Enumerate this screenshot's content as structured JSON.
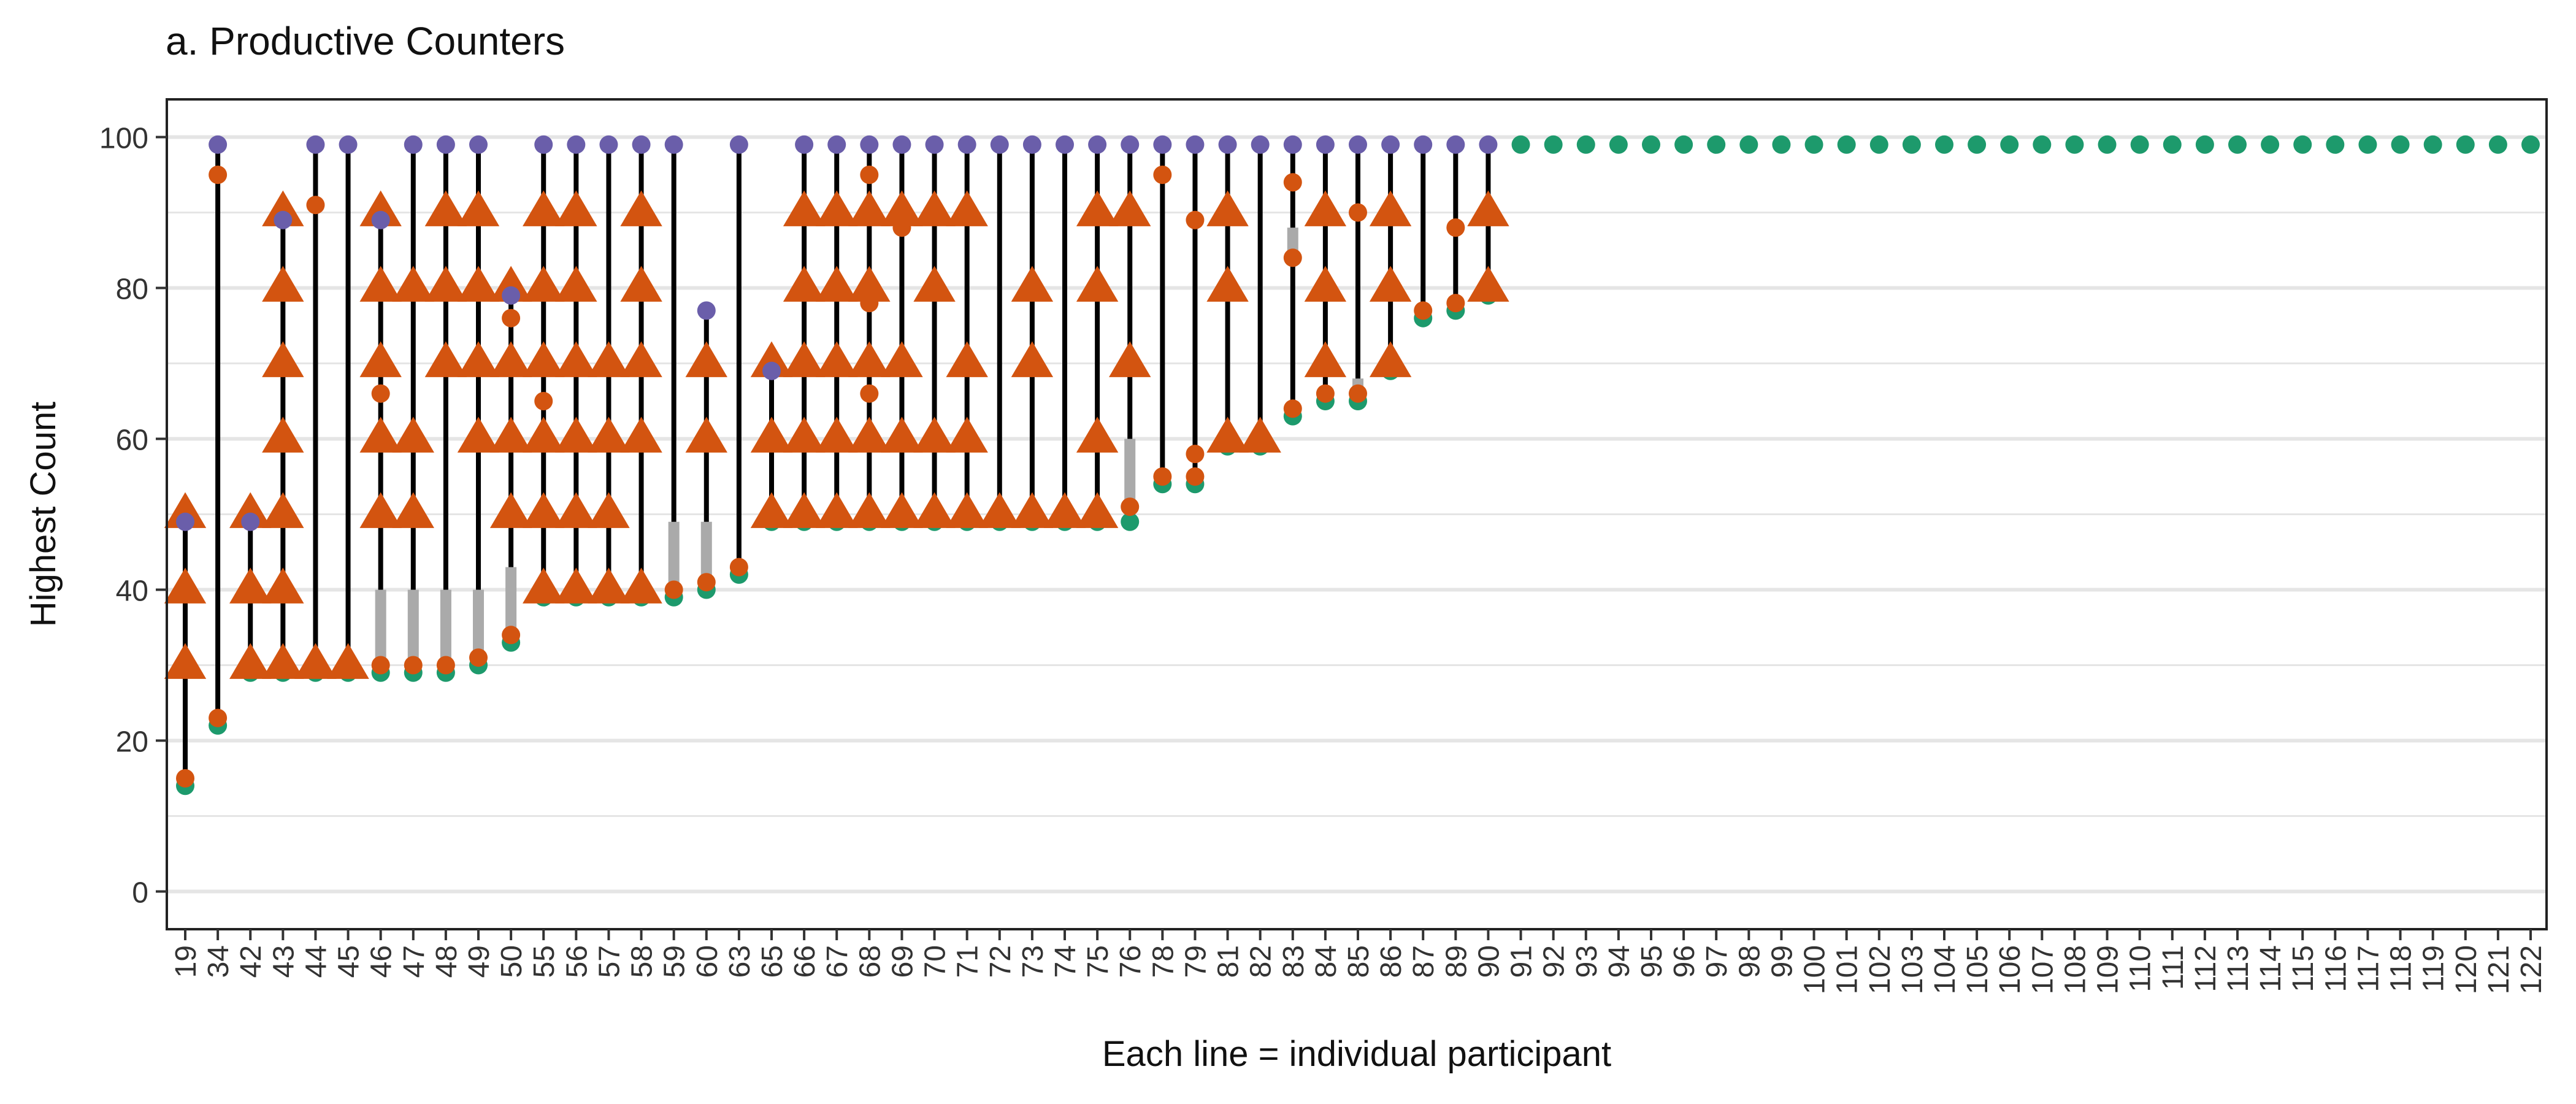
{
  "chart_data": {
    "type": "scatter",
    "title": "a. Productive Counters",
    "xlabel": "Each line = individual participant",
    "ylabel": "Highest Count",
    "ylim": [
      -5,
      105
    ],
    "y_ticks": [
      0,
      20,
      40,
      60,
      80,
      100
    ],
    "grid": true,
    "legend": "none",
    "colors": {
      "purple": "#6a5eaa",
      "orange": "#d35410",
      "green": "#1d9a6c",
      "black_line": "#000000",
      "gray_gap": "#aaaaaa",
      "grid": "#e5e5e5"
    },
    "participants": [
      {
        "label": "19",
        "green": 14,
        "purple": 49,
        "orange_dots": [
          15
        ],
        "triangles": [
          30,
          40,
          50
        ]
      },
      {
        "label": "34",
        "green": 22,
        "purple": 99,
        "orange_dots": [
          23,
          95
        ],
        "triangles": []
      },
      {
        "label": "42",
        "green": 29,
        "purple": 49,
        "orange_dots": [],
        "triangles": [
          30,
          40,
          50
        ]
      },
      {
        "label": "43",
        "green": 29,
        "purple": 89,
        "orange_dots": [],
        "triangles": [
          30,
          40,
          50,
          60,
          70,
          80,
          90
        ]
      },
      {
        "label": "44",
        "green": 29,
        "purple": 99,
        "orange_dots": [
          91
        ],
        "triangles": [
          30
        ]
      },
      {
        "label": "45",
        "green": 29,
        "purple": 99,
        "orange_dots": [],
        "triangles": [
          30
        ]
      },
      {
        "label": "46",
        "green": 29,
        "purple": 89,
        "orange_dots": [
          30,
          66
        ],
        "triangles": [
          50,
          60,
          70,
          80,
          90
        ],
        "gap": [
          30,
          40
        ]
      },
      {
        "label": "47",
        "green": 29,
        "purple": 99,
        "orange_dots": [
          30
        ],
        "triangles": [
          50,
          60,
          80
        ],
        "gap": [
          30,
          40
        ]
      },
      {
        "label": "48",
        "green": 29,
        "purple": 99,
        "orange_dots": [
          30
        ],
        "triangles": [
          70,
          80,
          90
        ],
        "gap": [
          30,
          40
        ]
      },
      {
        "label": "49",
        "green": 30,
        "purple": 99,
        "orange_dots": [
          31
        ],
        "triangles": [
          60,
          70,
          80,
          90
        ],
        "gap": [
          31,
          40
        ]
      },
      {
        "label": "50",
        "green": 33,
        "purple": 79,
        "orange_dots": [
          34,
          76
        ],
        "triangles": [
          50,
          60,
          70,
          80
        ],
        "gap": [
          34,
          43
        ]
      },
      {
        "label": "55",
        "green": 39,
        "purple": 99,
        "orange_dots": [
          65
        ],
        "triangles": [
          40,
          50,
          60,
          70,
          80,
          90
        ]
      },
      {
        "label": "56",
        "green": 39,
        "purple": 99,
        "orange_dots": [],
        "triangles": [
          40,
          50,
          60,
          70,
          80,
          90
        ]
      },
      {
        "label": "57",
        "green": 39,
        "purple": 99,
        "orange_dots": [],
        "triangles": [
          40,
          50,
          60,
          70
        ]
      },
      {
        "label": "58",
        "green": 39,
        "purple": 99,
        "orange_dots": [],
        "triangles": [
          40,
          60,
          70,
          80,
          90
        ]
      },
      {
        "label": "59",
        "green": 39,
        "purple": 99,
        "orange_dots": [
          40
        ],
        "triangles": [],
        "gap": [
          40,
          49
        ]
      },
      {
        "label": "60",
        "green": 40,
        "purple": 77,
        "orange_dots": [
          41
        ],
        "triangles": [
          60,
          70
        ],
        "gap": [
          41,
          49
        ]
      },
      {
        "label": "63",
        "green": 42,
        "purple": 99,
        "orange_dots": [
          43
        ],
        "triangles": []
      },
      {
        "label": "65",
        "green": 49,
        "purple": 69,
        "orange_dots": [],
        "triangles": [
          50,
          60,
          70
        ]
      },
      {
        "label": "66",
        "green": 49,
        "purple": 99,
        "orange_dots": [],
        "triangles": [
          50,
          60,
          70,
          80,
          90
        ]
      },
      {
        "label": "67",
        "green": 49,
        "purple": 99,
        "orange_dots": [],
        "triangles": [
          50,
          60,
          70,
          80,
          90
        ]
      },
      {
        "label": "68",
        "green": 49,
        "purple": 99,
        "orange_dots": [
          66,
          78,
          95
        ],
        "triangles": [
          50,
          60,
          70,
          80,
          90
        ]
      },
      {
        "label": "69",
        "green": 49,
        "purple": 99,
        "orange_dots": [
          88
        ],
        "triangles": [
          50,
          60,
          70,
          90
        ]
      },
      {
        "label": "70",
        "green": 49,
        "purple": 99,
        "orange_dots": [],
        "triangles": [
          50,
          60,
          80,
          90
        ]
      },
      {
        "label": "71",
        "green": 49,
        "purple": 99,
        "orange_dots": [],
        "triangles": [
          50,
          60,
          70,
          90
        ]
      },
      {
        "label": "72",
        "green": 49,
        "purple": 99,
        "orange_dots": [],
        "triangles": [
          50
        ]
      },
      {
        "label": "73",
        "green": 49,
        "purple": 99,
        "orange_dots": [],
        "triangles": [
          50,
          70,
          80
        ]
      },
      {
        "label": "74",
        "green": 49,
        "purple": 99,
        "orange_dots": [],
        "triangles": [
          50
        ]
      },
      {
        "label": "75",
        "green": 49,
        "purple": 99,
        "orange_dots": [],
        "triangles": [
          50,
          60,
          80,
          90
        ]
      },
      {
        "label": "76",
        "green": 49,
        "purple": 99,
        "orange_dots": [
          51
        ],
        "triangles": [
          70,
          90
        ],
        "gap": [
          51,
          60
        ]
      },
      {
        "label": "78",
        "green": 54,
        "purple": 99,
        "orange_dots": [
          55,
          95
        ],
        "triangles": []
      },
      {
        "label": "79",
        "green": 54,
        "purple": 99,
        "orange_dots": [
          55,
          58,
          89
        ],
        "triangles": []
      },
      {
        "label": "81",
        "green": 59,
        "purple": 99,
        "orange_dots": [],
        "triangles": [
          60,
          80,
          90
        ]
      },
      {
        "label": "82",
        "green": 59,
        "purple": 99,
        "orange_dots": [],
        "triangles": [
          60
        ]
      },
      {
        "label": "83",
        "green": 63,
        "purple": 99,
        "orange_dots": [
          64,
          84,
          94
        ],
        "triangles": [],
        "gap": [
          84,
          88
        ]
      },
      {
        "label": "84",
        "green": 65,
        "purple": 99,
        "orange_dots": [
          66
        ],
        "triangles": [
          70,
          80,
          90
        ]
      },
      {
        "label": "85",
        "green": 65,
        "purple": 99,
        "orange_dots": [
          66,
          90
        ],
        "triangles": [],
        "gap": [
          66,
          68
        ]
      },
      {
        "label": "86",
        "green": 69,
        "purple": 99,
        "orange_dots": [],
        "triangles": [
          70,
          80,
          90
        ]
      },
      {
        "label": "87",
        "green": 76,
        "purple": 99,
        "orange_dots": [
          77
        ],
        "triangles": []
      },
      {
        "label": "89",
        "green": 77,
        "purple": 99,
        "orange_dots": [
          78,
          88
        ],
        "triangles": []
      },
      {
        "label": "90",
        "green": 79,
        "purple": 99,
        "orange_dots": [],
        "triangles": [
          80,
          90
        ]
      },
      {
        "label": "91",
        "green": 99
      },
      {
        "label": "92",
        "green": 99
      },
      {
        "label": "93",
        "green": 99
      },
      {
        "label": "94",
        "green": 99
      },
      {
        "label": "95",
        "green": 99
      },
      {
        "label": "96",
        "green": 99
      },
      {
        "label": "97",
        "green": 99
      },
      {
        "label": "98",
        "green": 99
      },
      {
        "label": "99",
        "green": 99
      },
      {
        "label": "100",
        "green": 99
      },
      {
        "label": "101",
        "green": 99
      },
      {
        "label": "102",
        "green": 99
      },
      {
        "label": "103",
        "green": 99
      },
      {
        "label": "104",
        "green": 99
      },
      {
        "label": "105",
        "green": 99
      },
      {
        "label": "106",
        "green": 99
      },
      {
        "label": "107",
        "green": 99
      },
      {
        "label": "108",
        "green": 99
      },
      {
        "label": "109",
        "green": 99
      },
      {
        "label": "110",
        "green": 99
      },
      {
        "label": "111",
        "green": 99
      },
      {
        "label": "112",
        "green": 99
      },
      {
        "label": "113",
        "green": 99
      },
      {
        "label": "114",
        "green": 99
      },
      {
        "label": "115",
        "green": 99
      },
      {
        "label": "116",
        "green": 99
      },
      {
        "label": "117",
        "green": 99
      },
      {
        "label": "118",
        "green": 99
      },
      {
        "label": "119",
        "green": 99
      },
      {
        "label": "120",
        "green": 99
      },
      {
        "label": "121",
        "green": 99
      },
      {
        "label": "122",
        "green": 99
      }
    ]
  }
}
